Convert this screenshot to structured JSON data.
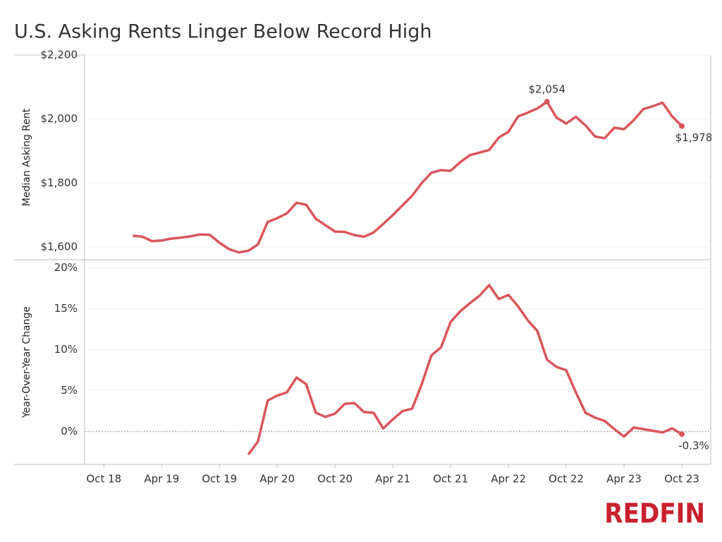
{
  "title": "U.S. Asking Rents Linger Below Record High",
  "logo": "REDFIN",
  "chart_data": [
    {
      "type": "line",
      "y_label": "Median Asking Rent",
      "x": [
        "2019-01",
        "2019-02",
        "2019-03",
        "2019-04",
        "2019-05",
        "2019-06",
        "2019-07",
        "2019-08",
        "2019-09",
        "2019-10",
        "2019-11",
        "2019-12",
        "2020-01",
        "2020-02",
        "2020-03",
        "2020-04",
        "2020-05",
        "2020-06",
        "2020-07",
        "2020-08",
        "2020-09",
        "2020-10",
        "2020-11",
        "2020-12",
        "2021-01",
        "2021-02",
        "2021-03",
        "2021-04",
        "2021-05",
        "2021-06",
        "2021-07",
        "2021-08",
        "2021-09",
        "2021-10",
        "2021-11",
        "2021-12",
        "2022-01",
        "2022-02",
        "2022-03",
        "2022-04",
        "2022-05",
        "2022-06",
        "2022-07",
        "2022-08",
        "2022-09",
        "2022-10",
        "2022-11",
        "2022-12",
        "2023-01",
        "2023-02",
        "2023-03",
        "2023-04",
        "2023-05",
        "2023-06",
        "2023-07",
        "2023-08",
        "2023-09",
        "2023-10"
      ],
      "xlim": [
        "2018-08",
        "2024-01"
      ],
      "ylim": [
        1560,
        2200
      ],
      "yticks": [
        {
          "value": 1600,
          "label": "$1,600"
        },
        {
          "value": 1800,
          "label": "$1,800"
        },
        {
          "value": 2000,
          "label": "$2,000"
        },
        {
          "value": 2200,
          "label": "$2,200"
        }
      ],
      "grid": true,
      "series": [
        {
          "name": "Median Asking Rent",
          "color": "#d9565a",
          "values": [
            1635,
            1632,
            1618,
            1620,
            1626,
            1629,
            1633,
            1639,
            1638,
            1613,
            1593,
            1583,
            1588,
            1608,
            1678,
            1690,
            1705,
            1738,
            1732,
            1688,
            1668,
            1648,
            1647,
            1637,
            1632,
            1645,
            1672,
            1700,
            1730,
            1760,
            1800,
            1832,
            1840,
            1838,
            1865,
            1887,
            1895,
            1903,
            1942,
            1960,
            2008,
            2020,
            2033,
            2054,
            2004,
            1986,
            2007,
            1980,
            1945,
            1940,
            1973,
            1968,
            1996,
            2031,
            2040,
            2051,
            2008,
            1978
          ],
          "value_labels": [
            null,
            null,
            null,
            null,
            null,
            null,
            null,
            null,
            null,
            null,
            null,
            null,
            null,
            null,
            null,
            null,
            null,
            null,
            null,
            null,
            null,
            null,
            null,
            null,
            null,
            null,
            null,
            null,
            null,
            null,
            null,
            null,
            null,
            null,
            null,
            null,
            null,
            null,
            null,
            null,
            null,
            null,
            null,
            "$2,054",
            null,
            null,
            null,
            null,
            null,
            null,
            null,
            null,
            null,
            null,
            null,
            null,
            null,
            "$1,978"
          ]
        }
      ]
    },
    {
      "type": "line",
      "y_label": "Year-Over-Year Change",
      "x": [
        "2019-01",
        "2019-02",
        "2019-03",
        "2019-04",
        "2019-05",
        "2019-06",
        "2019-07",
        "2019-08",
        "2019-09",
        "2019-10",
        "2019-11",
        "2019-12",
        "2020-01",
        "2020-02",
        "2020-03",
        "2020-04",
        "2020-05",
        "2020-06",
        "2020-07",
        "2020-08",
        "2020-09",
        "2020-10",
        "2020-11",
        "2020-12",
        "2021-01",
        "2021-02",
        "2021-03",
        "2021-04",
        "2021-05",
        "2021-06",
        "2021-07",
        "2021-08",
        "2021-09",
        "2021-10",
        "2021-11",
        "2021-12",
        "2022-01",
        "2022-02",
        "2022-03",
        "2022-04",
        "2022-05",
        "2022-06",
        "2022-07",
        "2022-08",
        "2022-09",
        "2022-10",
        "2022-11",
        "2022-12",
        "2023-01",
        "2023-02",
        "2023-03",
        "2023-04",
        "2023-05",
        "2023-06",
        "2023-07",
        "2023-08",
        "2023-09",
        "2023-10"
      ],
      "xlim": [
        "2018-08",
        "2024-01"
      ],
      "xticks": [
        {
          "value": "2018-10",
          "label": "Oct 18"
        },
        {
          "value": "2019-04",
          "label": "Apr 19"
        },
        {
          "value": "2019-10",
          "label": "Oct 19"
        },
        {
          "value": "2020-04",
          "label": "Apr 20"
        },
        {
          "value": "2020-10",
          "label": "Oct 20"
        },
        {
          "value": "2021-04",
          "label": "Apr 21"
        },
        {
          "value": "2021-10",
          "label": "Oct 21"
        },
        {
          "value": "2022-04",
          "label": "Apr 22"
        },
        {
          "value": "2022-10",
          "label": "Oct 22"
        },
        {
          "value": "2023-04",
          "label": "Apr 23"
        },
        {
          "value": "2023-10",
          "label": "Oct 23"
        }
      ],
      "ylim": [
        -4,
        21
      ],
      "yticks": [
        {
          "value": 0,
          "label": "0%"
        },
        {
          "value": 5,
          "label": "5%"
        },
        {
          "value": 10,
          "label": "10%"
        },
        {
          "value": 15,
          "label": "15%"
        },
        {
          "value": 20,
          "label": "20%"
        }
      ],
      "grid": true,
      "series": [
        {
          "name": "Year-Over-Year Change",
          "color": "#d9565a",
          "values": [
            null,
            null,
            null,
            null,
            null,
            null,
            null,
            null,
            null,
            null,
            null,
            null,
            -2.8,
            -1.2,
            3.8,
            4.4,
            4.8,
            6.6,
            5.8,
            2.3,
            1.8,
            2.2,
            3.4,
            3.5,
            2.4,
            2.3,
            0.4,
            1.5,
            2.5,
            2.8,
            5.8,
            9.3,
            10.3,
            13.4,
            14.7,
            15.7,
            16.6,
            17.9,
            16.2,
            16.7,
            15.3,
            13.6,
            12.3,
            8.8,
            7.9,
            7.5,
            4.8,
            2.3,
            1.7,
            1.3,
            0.3,
            -0.6,
            0.5,
            0.3,
            0.1,
            -0.1,
            0.4,
            -0.3
          ],
          "value_labels": [
            null,
            null,
            null,
            null,
            null,
            null,
            null,
            null,
            null,
            null,
            null,
            null,
            null,
            null,
            null,
            null,
            null,
            null,
            null,
            null,
            null,
            null,
            null,
            null,
            null,
            null,
            null,
            null,
            null,
            null,
            null,
            null,
            null,
            null,
            null,
            null,
            null,
            null,
            null,
            null,
            null,
            null,
            null,
            null,
            null,
            null,
            null,
            null,
            null,
            null,
            null,
            null,
            null,
            null,
            null,
            null,
            null,
            "-0.3%"
          ]
        }
      ]
    }
  ]
}
